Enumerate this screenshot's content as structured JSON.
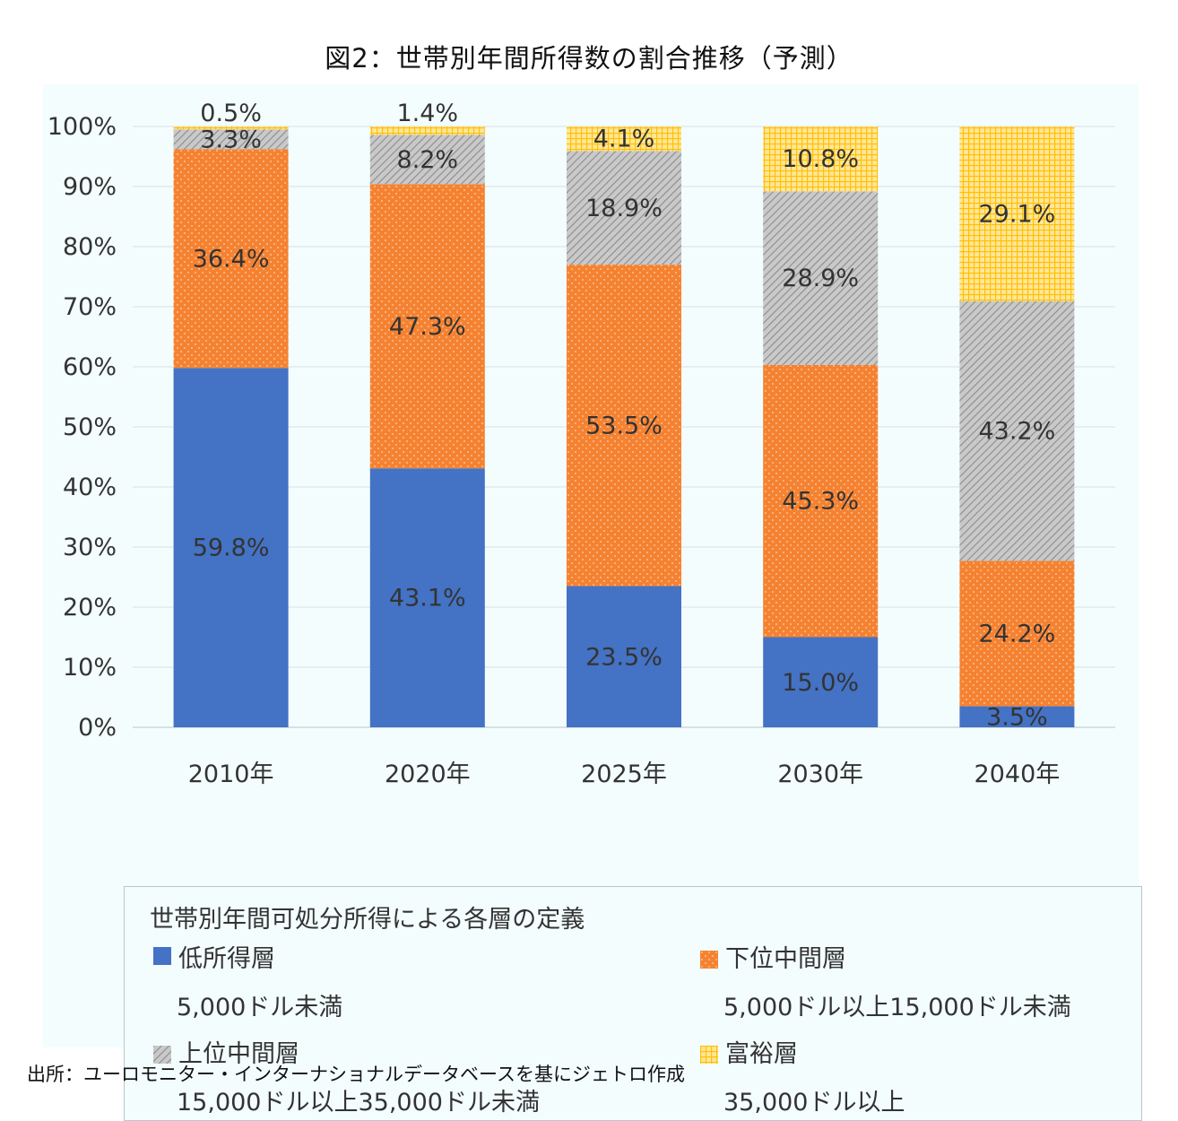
{
  "page": {
    "title": "図2：世帯別年間所得数の割合推移（予測）",
    "source": "出所：ユーロモニター・インターナショナルデータベースを基にジェトロ作成"
  },
  "legend": {
    "heading": "世帯別年間可処分所得による各層の定義",
    "items": [
      {
        "name": "低所得層",
        "range": "5,000ドル未満",
        "pattern": "solid"
      },
      {
        "name": "下位中間層",
        "range": "5,000ドル以上15,000ドル未満",
        "pattern": "dots"
      },
      {
        "name": "上位中間層",
        "range": "15,000ドル以上35,000ドル未満",
        "pattern": "diagonal-hatch"
      },
      {
        "name": "富裕層",
        "range": "35,000ドル以上",
        "pattern": "grid"
      }
    ]
  },
  "chart_data": {
    "type": "bar",
    "stacked": true,
    "orientation": "vertical",
    "title": "図2：世帯別年間所得数の割合推移（予測）",
    "xlabel": "",
    "ylabel": "",
    "ylim": [
      0,
      100
    ],
    "yticks": [
      "0%",
      "10%",
      "20%",
      "30%",
      "40%",
      "50%",
      "60%",
      "70%",
      "80%",
      "90%",
      "100%"
    ],
    "grid": true,
    "legend_position": "bottom",
    "categories": [
      "2010年",
      "2020年",
      "2025年",
      "2030年",
      "2040年"
    ],
    "series": [
      {
        "name": "低所得層",
        "color": "#4472c4",
        "values": [
          59.8,
          43.1,
          23.5,
          15.0,
          3.5
        ],
        "labels": [
          "59.8%",
          "43.1%",
          "23.5%",
          "15.0%",
          "3.5%"
        ]
      },
      {
        "name": "下位中間層",
        "color": "#f58231",
        "values": [
          36.4,
          47.3,
          53.5,
          45.3,
          24.2
        ],
        "labels": [
          "36.4%",
          "47.3%",
          "53.5%",
          "45.3%",
          "24.2%"
        ]
      },
      {
        "name": "上位中間層",
        "color": "#a6a6a6",
        "values": [
          3.3,
          8.2,
          18.9,
          28.9,
          43.2
        ],
        "labels": [
          "3.3%",
          "8.2%",
          "18.9%",
          "28.9%",
          "43.2%"
        ]
      },
      {
        "name": "富裕層",
        "color": "#ffc000",
        "values": [
          0.5,
          1.4,
          4.1,
          10.8,
          29.1
        ],
        "labels": [
          "0.5%",
          "1.4%",
          "4.1%",
          "10.8%",
          "29.1%"
        ]
      }
    ]
  }
}
